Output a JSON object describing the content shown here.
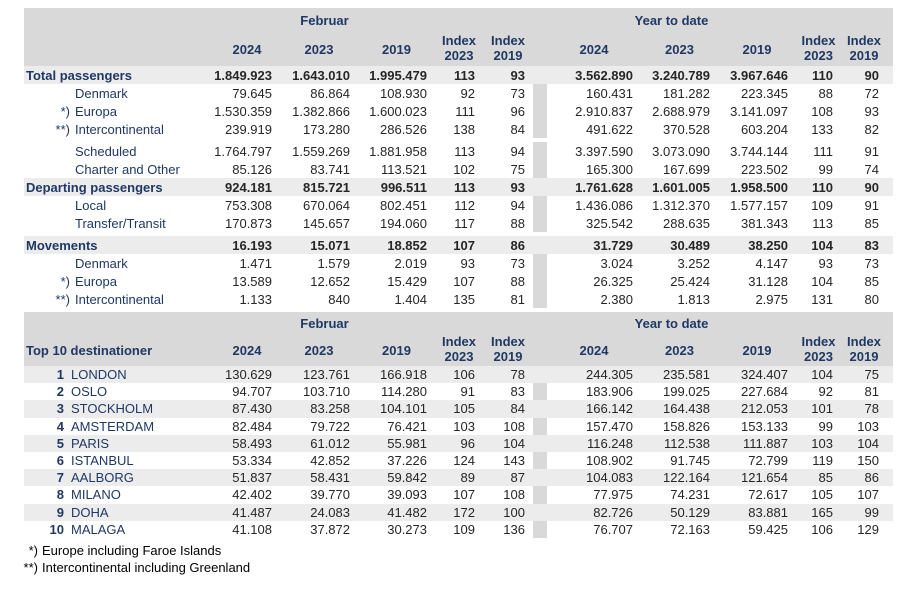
{
  "colors": {
    "header_band": "#d9d9d9",
    "highlight_row": "#ececec",
    "divider": "#d9d9d9",
    "heading_text": "#1f3864",
    "number_text": "#262626",
    "footnote_text": "#000000",
    "background": "#ffffff"
  },
  "header": {
    "period_feb": "Februar",
    "period_ytd": "Year to date",
    "years": [
      "2024",
      "2023",
      "2019"
    ],
    "index_word": "Index",
    "index_2023_year": "2023",
    "index_2019_year": "2019"
  },
  "traffic_table": {
    "rows": [
      {
        "label": "Total passengers",
        "marker": "",
        "style": "section",
        "gap_before": false,
        "values": [
          "1.849.923",
          "1.643.010",
          "1.995.479",
          "113",
          "93",
          "3.562.890",
          "3.240.789",
          "3.967.646",
          "110",
          "90"
        ]
      },
      {
        "label": "Denmark",
        "marker": "",
        "style": "sub",
        "gap_before": false,
        "values": [
          "79.645",
          "86.864",
          "108.930",
          "92",
          "73",
          "160.431",
          "181.282",
          "223.345",
          "88",
          "72"
        ]
      },
      {
        "label": "Europa",
        "marker": "*)",
        "style": "sub",
        "gap_before": false,
        "values": [
          "1.530.359",
          "1.382.866",
          "1.600.023",
          "111",
          "96",
          "2.910.837",
          "2.688.979",
          "3.141.097",
          "108",
          "93"
        ]
      },
      {
        "label": "Intercontinental",
        "marker": "**)",
        "style": "sub",
        "gap_before": false,
        "values": [
          "239.919",
          "173.280",
          "286.526",
          "138",
          "84",
          "491.622",
          "370.528",
          "603.204",
          "133",
          "82"
        ]
      },
      {
        "label": "Scheduled",
        "marker": "",
        "style": "sub",
        "gap_before": true,
        "values": [
          "1.764.797",
          "1.559.269",
          "1.881.958",
          "113",
          "94",
          "3.397.590",
          "3.073.090",
          "3.744.144",
          "111",
          "91"
        ]
      },
      {
        "label": "Charter and Other",
        "marker": "",
        "style": "sub",
        "gap_before": false,
        "values": [
          "85.126",
          "83.741",
          "113.521",
          "102",
          "75",
          "165.300",
          "167.699",
          "223.502",
          "99",
          "74"
        ]
      },
      {
        "label": "Departing passengers",
        "marker": "",
        "style": "section",
        "gap_before": false,
        "values": [
          "924.181",
          "815.721",
          "996.511",
          "113",
          "93",
          "1.761.628",
          "1.601.005",
          "1.958.500",
          "110",
          "90"
        ]
      },
      {
        "label": "Local",
        "marker": "",
        "style": "sub",
        "gap_before": false,
        "values": [
          "753.308",
          "670.064",
          "802.451",
          "112",
          "94",
          "1.436.086",
          "1.312.370",
          "1.577.157",
          "109",
          "91"
        ]
      },
      {
        "label": "Transfer/Transit",
        "marker": "",
        "style": "sub",
        "gap_before": false,
        "values": [
          "170.873",
          "145.657",
          "194.060",
          "117",
          "88",
          "325.542",
          "288.635",
          "381.343",
          "113",
          "85"
        ]
      },
      {
        "label": "Movements",
        "marker": "",
        "style": "section",
        "gap_before": true,
        "values": [
          "16.193",
          "15.071",
          "18.852",
          "107",
          "86",
          "31.729",
          "30.489",
          "38.250",
          "104",
          "83"
        ]
      },
      {
        "label": "Denmark",
        "marker": "",
        "style": "sub",
        "gap_before": false,
        "values": [
          "1.471",
          "1.579",
          "2.019",
          "93",
          "73",
          "3.024",
          "3.252",
          "4.147",
          "93",
          "73"
        ]
      },
      {
        "label": "Europa",
        "marker": "*)",
        "style": "sub",
        "gap_before": false,
        "values": [
          "13.589",
          "12.652",
          "15.429",
          "107",
          "88",
          "26.325",
          "25.424",
          "31.128",
          "104",
          "85"
        ]
      },
      {
        "label": "Intercontinental",
        "marker": "**)",
        "style": "sub",
        "gap_before": false,
        "values": [
          "1.133",
          "840",
          "1.404",
          "135",
          "81",
          "2.380",
          "1.813",
          "2.975",
          "131",
          "80"
        ]
      }
    ]
  },
  "destinations_table": {
    "title": "Top 10 destinationer",
    "rows": [
      {
        "rank": "1",
        "label": "LONDON",
        "values": [
          "130.629",
          "123.761",
          "166.918",
          "106",
          "78",
          "244.305",
          "235.581",
          "324.407",
          "104",
          "75"
        ]
      },
      {
        "rank": "2",
        "label": "OSLO",
        "values": [
          "94.707",
          "103.710",
          "114.280",
          "91",
          "83",
          "183.906",
          "199.025",
          "227.684",
          "92",
          "81"
        ]
      },
      {
        "rank": "3",
        "label": "STOCKHOLM",
        "values": [
          "87.430",
          "83.258",
          "104.101",
          "105",
          "84",
          "166.142",
          "164.438",
          "212.053",
          "101",
          "78"
        ]
      },
      {
        "rank": "4",
        "label": "AMSTERDAM",
        "values": [
          "82.484",
          "79.722",
          "76.421",
          "103",
          "108",
          "157.470",
          "158.826",
          "153.133",
          "99",
          "103"
        ]
      },
      {
        "rank": "5",
        "label": "PARIS",
        "values": [
          "58.493",
          "61.012",
          "55.981",
          "96",
          "104",
          "116.248",
          "112.538",
          "111.887",
          "103",
          "104"
        ]
      },
      {
        "rank": "6",
        "label": "ISTANBUL",
        "values": [
          "53.334",
          "42.852",
          "37.226",
          "124",
          "143",
          "108.902",
          "91.745",
          "72.799",
          "119",
          "150"
        ]
      },
      {
        "rank": "7",
        "label": "AALBORG",
        "values": [
          "51.837",
          "58.431",
          "59.842",
          "89",
          "87",
          "104.083",
          "122.164",
          "121.654",
          "85",
          "86"
        ]
      },
      {
        "rank": "8",
        "label": "MILANO",
        "values": [
          "42.402",
          "39.770",
          "39.093",
          "107",
          "108",
          "77.975",
          "74.231",
          "72.617",
          "105",
          "107"
        ]
      },
      {
        "rank": "9",
        "label": "DOHA",
        "values": [
          "41.487",
          "24.083",
          "41.482",
          "172",
          "100",
          "82.726",
          "50.129",
          "83.881",
          "165",
          "99"
        ]
      },
      {
        "rank": "10",
        "label": "MALAGA",
        "values": [
          "41.108",
          "37.872",
          "30.273",
          "109",
          "136",
          "76.707",
          "72.163",
          "59.425",
          "106",
          "129"
        ]
      }
    ]
  },
  "footnotes": [
    {
      "marker": "*)",
      "text": "Europe including Faroe Islands"
    },
    {
      "marker": "**)",
      "text": "Intercontinental including Greenland"
    }
  ]
}
